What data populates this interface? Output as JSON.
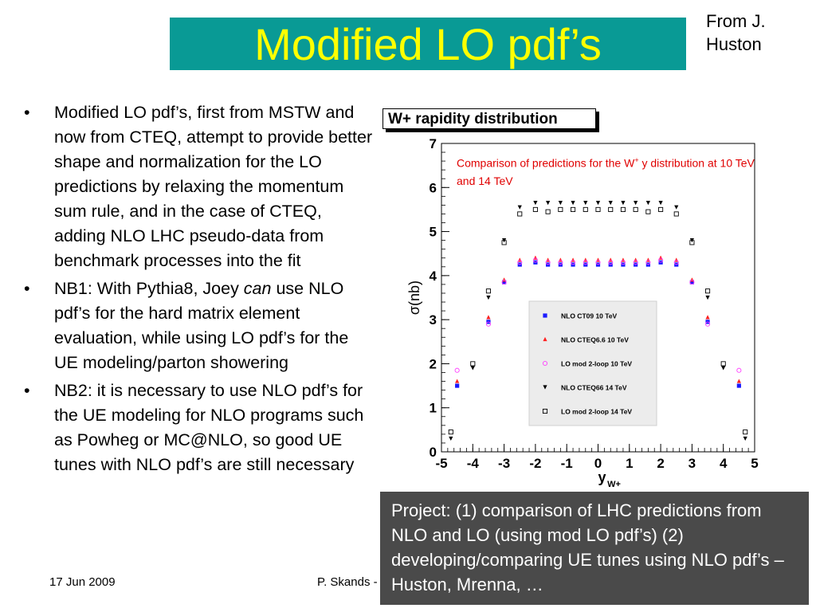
{
  "slide": {
    "title": "Modified LO pdf’s",
    "credit_line1": "From J.",
    "credit_line2": "Huston",
    "bullets": [
      {
        "marker": "•",
        "pre": "Modified LO pdf’s, first from MSTW and now from CTEQ, attempt to provide better shape and normalization for the LO predictions by relaxing the momentum sum rule, and in the case of CTEQ, adding NLO LHC pseudo-data from benchmark processes into the fit",
        "italic": "",
        "post": ""
      },
      {
        "marker": "•",
        "pre": "NB1: With Pythia8, Joey ",
        "italic": "can",
        "post": " use NLO pdf’s for the hard matrix element evaluation, while using LO pdf’s for the UE modeling/parton showering"
      },
      {
        "marker": "•",
        "pre": "NB2: it is necessary to use NLO pdf’s for the UE modeling for NLO programs such as Powheg or MC@NLO, so good UE tunes with NLO pdf’s are still necessary",
        "italic": "",
        "post": ""
      }
    ],
    "footer_date": "17 Jun 2009",
    "footer_author": "P. Skands -",
    "project_text": "Project: (1) comparison of LHC predictions from NLO and LO  (using mod LO pdf’s) (2) developing/comparing UE tunes using NLO pdf’s – Huston, Mrenna, …"
  },
  "chart_data": {
    "type": "scatter",
    "title": "W+ rapidity distribution",
    "annotation_pre": "Comparison of predictions for the W",
    "annotation_sup": "+",
    "annotation_post": " y distribution at 10 TeV and 14 TeV",
    "xlabel": "y",
    "xlabel_sub": "W+",
    "ylabel": "σ(nb)",
    "xlim": [
      -5,
      5
    ],
    "ylim": [
      0,
      7
    ],
    "xticks": [
      "-5",
      "-4",
      "-3",
      "-2",
      "-1",
      "0",
      "1",
      "2",
      "3",
      "4",
      "5"
    ],
    "yticks": [
      "0",
      "1",
      "2",
      "3",
      "4",
      "5",
      "6",
      "7"
    ],
    "grid": false,
    "legend_position": "center-right",
    "colors": {
      "blue": "#1a1aff",
      "red": "#ff2020",
      "magenta": "#ff40ff",
      "black": "#000000"
    },
    "series": [
      {
        "name": "NLO CT09 10 TeV",
        "marker": "square-filled",
        "color": "#1a1aff",
        "x": [
          -4.5,
          -3.5,
          -3.0,
          -2.5,
          -2.0,
          -1.6,
          -1.2,
          -0.8,
          -0.4,
          0.0,
          0.4,
          0.8,
          1.2,
          1.6,
          2.0,
          2.5,
          3.0,
          3.5,
          4.5
        ],
        "y": [
          1.5,
          2.95,
          3.85,
          4.25,
          4.3,
          4.25,
          4.25,
          4.25,
          4.25,
          4.25,
          4.25,
          4.25,
          4.25,
          4.25,
          4.3,
          4.25,
          3.85,
          2.95,
          1.5
        ]
      },
      {
        "name": "NLO CTEQ6.6 10 TeV",
        "marker": "triangle-up",
        "color": "#ff2020",
        "x": [
          -4.5,
          -3.5,
          -3.0,
          -2.5,
          -2.0,
          -1.6,
          -1.2,
          -0.8,
          -0.4,
          0.0,
          0.4,
          0.8,
          1.2,
          1.6,
          2.0,
          2.5,
          3.0,
          3.5,
          4.5
        ],
        "y": [
          1.6,
          3.05,
          3.9,
          4.35,
          4.4,
          4.35,
          4.35,
          4.35,
          4.35,
          4.35,
          4.35,
          4.35,
          4.35,
          4.35,
          4.4,
          4.35,
          3.9,
          3.05,
          1.6
        ]
      },
      {
        "name": "LO mod 2-loop 10 TeV",
        "marker": "circle-open",
        "color": "#ff40ff",
        "x": [
          -4.5,
          -3.5,
          -3.0,
          -2.5,
          -2.0,
          -1.6,
          -1.2,
          -0.8,
          -0.4,
          0.0,
          0.4,
          0.8,
          1.2,
          1.6,
          2.0,
          2.5,
          3.0,
          3.5,
          4.5
        ],
        "y": [
          1.85,
          2.9,
          3.85,
          4.3,
          4.35,
          4.3,
          4.3,
          4.3,
          4.3,
          4.3,
          4.3,
          4.3,
          4.3,
          4.3,
          4.35,
          4.3,
          3.85,
          2.9,
          1.85
        ]
      },
      {
        "name": "NLO CTEQ66 14 TeV",
        "marker": "triangle-down",
        "color": "#000000",
        "x": [
          -4.7,
          -4.0,
          -3.5,
          -3.0,
          -2.5,
          -2.0,
          -1.6,
          -1.2,
          -0.8,
          -0.4,
          0.0,
          0.4,
          0.8,
          1.2,
          1.6,
          2.0,
          2.5,
          3.0,
          3.5,
          4.0,
          4.7
        ],
        "y": [
          0.3,
          1.9,
          3.5,
          4.8,
          5.55,
          5.65,
          5.65,
          5.65,
          5.65,
          5.65,
          5.65,
          5.65,
          5.65,
          5.65,
          5.65,
          5.65,
          5.55,
          4.8,
          3.5,
          1.9,
          0.3
        ]
      },
      {
        "name": "LO mod 2-loop 14 TeV",
        "marker": "square-open",
        "color": "#000000",
        "x": [
          -4.7,
          -4.0,
          -3.5,
          -3.0,
          -2.5,
          -2.0,
          -1.6,
          -1.2,
          -0.8,
          -0.4,
          0.0,
          0.4,
          0.8,
          1.2,
          1.6,
          2.0,
          2.5,
          3.0,
          3.5,
          4.0,
          4.7
        ],
        "y": [
          0.45,
          2.0,
          3.65,
          4.75,
          5.4,
          5.5,
          5.45,
          5.5,
          5.5,
          5.5,
          5.5,
          5.5,
          5.5,
          5.5,
          5.45,
          5.5,
          5.4,
          4.75,
          3.65,
          2.0,
          0.45
        ]
      }
    ]
  }
}
